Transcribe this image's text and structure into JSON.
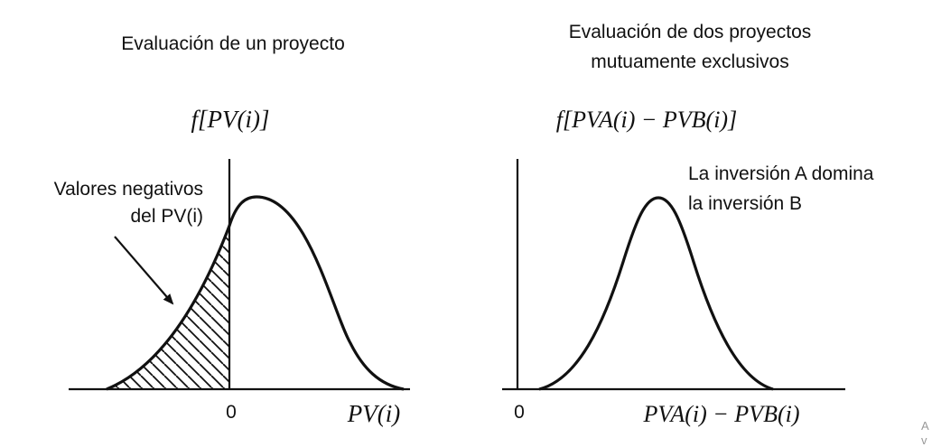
{
  "left_panel": {
    "title": "Evaluación de un proyecto",
    "ylabel": "f[PV(i)]",
    "xlabel": "PV(i)",
    "zero_tick": "0",
    "annotation_line1": "Valores negativos",
    "annotation_line2": "del PV(i)"
  },
  "right_panel": {
    "title_line1": "Evaluación de dos proyectos",
    "title_line2": "mutuamente exclusivos",
    "ylabel": "f[PVA(i) − PVB(i)]",
    "xlabel": "PVA(i) − PVB(i)",
    "zero_tick": "0",
    "annotation_line1": "La inversión A domina",
    "annotation_line2": "la inversión B"
  },
  "corner_text_line1": "A",
  "corner_text_line2": "v",
  "colors": {
    "ink": "#111111",
    "background": "#ffffff"
  }
}
